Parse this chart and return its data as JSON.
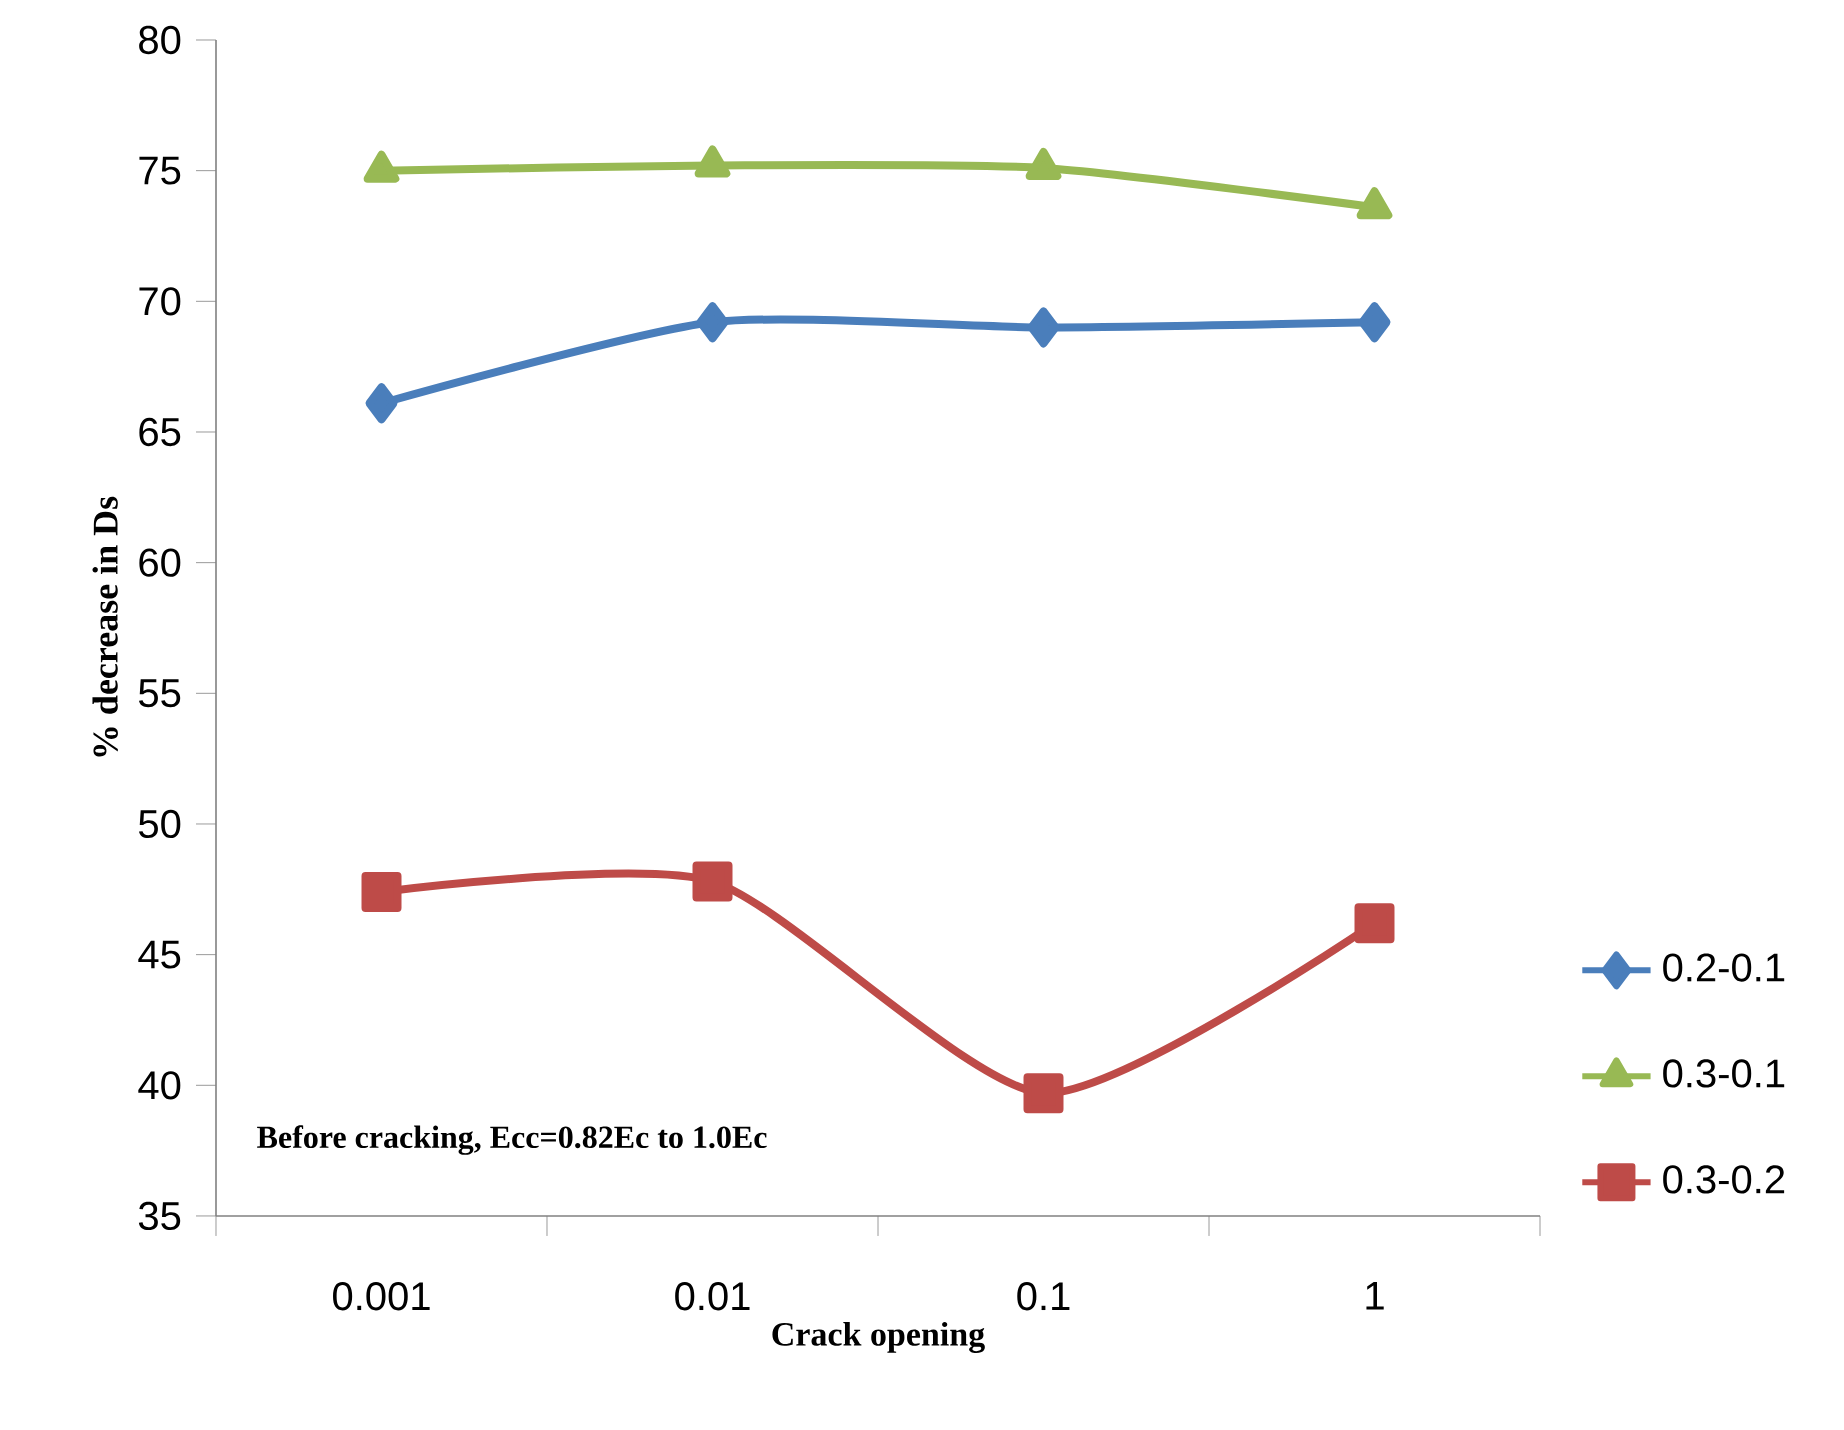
{
  "chart_data": {
    "type": "line",
    "xlabel": "Crack opening",
    "ylabel": "% decrease in Ds",
    "categories": [
      "0.001",
      "0.01",
      "0.1",
      "1"
    ],
    "series": [
      {
        "name": "0.2-0.1",
        "color": "#4a7ebb",
        "marker": "diamond",
        "values": [
          66.1,
          69.2,
          69.0,
          69.2
        ]
      },
      {
        "name": "0.3-0.1",
        "color": "#98b954",
        "marker": "triangle",
        "values": [
          75.0,
          75.2,
          75.1,
          73.6
        ]
      },
      {
        "name": "0.3-0.2",
        "color": "#be4b48",
        "marker": "square",
        "values": [
          47.4,
          47.8,
          39.7,
          46.2
        ]
      }
    ],
    "ylim": [
      35,
      80
    ],
    "yticks": [
      35,
      40,
      45,
      50,
      55,
      60,
      65,
      70,
      75,
      80
    ],
    "grid": false,
    "legend": "right",
    "line_style": "solid",
    "annotations": [
      "Before cracking, Ecc=0.82Ec to 1.0Ec"
    ]
  }
}
